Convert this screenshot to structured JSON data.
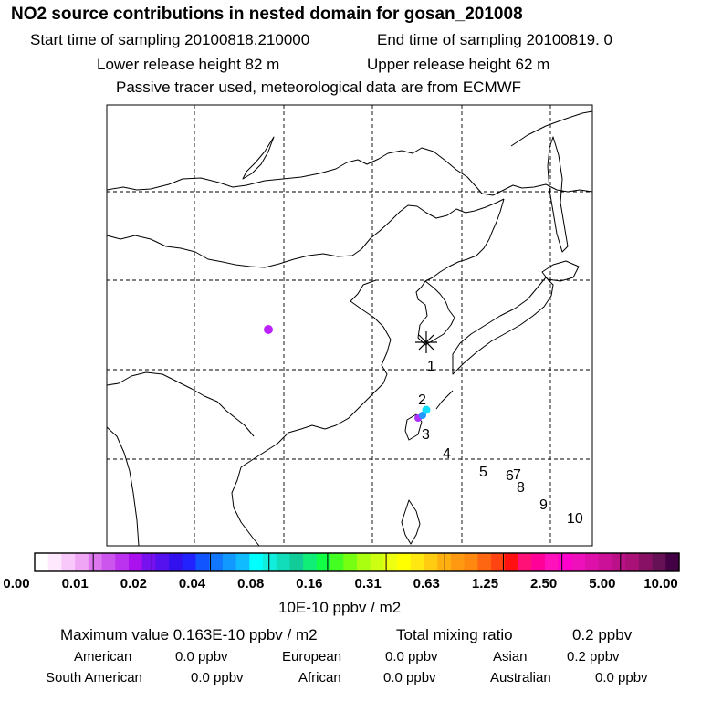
{
  "header": {
    "title": "NO2 source contributions in nested domain for gosan_201008",
    "start_label": "Start time of sampling 20100818.210000",
    "end_label": "End time of sampling 20100819.     0",
    "lower_label": "Lower release height   82 m",
    "upper_label": "Upper release height   62 m",
    "tracer_label": "Passive tracer used, meteorological data are from ECMWF"
  },
  "chart_data": {
    "type": "heatmap",
    "title": "NO2 source contributions in nested domain for gosan_201008",
    "grid": true,
    "receptor_marker": "asterisk",
    "trajectory_points": [
      {
        "label": "1"
      },
      {
        "label": "2"
      },
      {
        "label": "3"
      },
      {
        "label": "4"
      },
      {
        "label": "5"
      },
      {
        "label": "6"
      },
      {
        "label": "7"
      },
      {
        "label": "8"
      },
      {
        "label": "9"
      },
      {
        "label": "10"
      }
    ],
    "source_spots": [
      {
        "region": "inland",
        "level": 0.02,
        "color": "#bb22ff"
      },
      {
        "region": "sea-west",
        "level": 0.02,
        "color": "#aa33ff"
      },
      {
        "region": "sea-center",
        "level": 0.04,
        "color": "#2299ff"
      },
      {
        "region": "sea-north",
        "level": 0.08,
        "color": "#11ddff"
      }
    ],
    "colorbar": {
      "tick_labels": [
        "0.00",
        "0.01",
        "0.02",
        "0.04",
        "0.08",
        "0.16",
        "0.31",
        "0.63",
        "1.25",
        "2.50",
        "5.00",
        "10.00"
      ],
      "colors": [
        "#ffffff",
        "#fde8fd",
        "#f7c8f9",
        "#efa6f5",
        "#dd77f0",
        "#cc55ee",
        "#bb33ee",
        "#aa11ee",
        "#7711ee",
        "#5511ee",
        "#3311ee",
        "#2222ff",
        "#1155ff",
        "#1177ff",
        "#1199ff",
        "#11bbff",
        "#00ffff",
        "#11eedd",
        "#11ddbb",
        "#11cc99",
        "#11ee77",
        "#11ff44",
        "#44ff22",
        "#77ff11",
        "#aaff11",
        "#ccff11",
        "#eeff11",
        "#ffff00",
        "#ffe811",
        "#ffcc11",
        "#ffb011",
        "#ff9911",
        "#ff8811",
        "#ff6611",
        "#ff4411",
        "#ff1111",
        "#ff1177",
        "#ff0099",
        "#ff11bb",
        "#ff00cc",
        "#ee11bb",
        "#dd11aa",
        "#cc1199",
        "#bb1188",
        "#aa1177",
        "#881166",
        "#661155",
        "#440044"
      ],
      "unit_label": "10E-10 ppbv / m2"
    }
  },
  "summary": {
    "max_label": "Maximum value  0.163E-10 ppbv / m2",
    "total_label": "Total mixing ratio",
    "total_value": "0.2 ppbv",
    "regions": [
      {
        "name": "American",
        "value": "0.0 ppbv"
      },
      {
        "name": "European",
        "value": "0.0 ppbv"
      },
      {
        "name": "Asian",
        "value": "0.2 ppbv"
      },
      {
        "name": "South American",
        "value": "0.0 ppbv"
      },
      {
        "name": "African",
        "value": "0.0 ppbv"
      },
      {
        "name": "Australian",
        "value": "0.0 ppbv"
      }
    ]
  }
}
